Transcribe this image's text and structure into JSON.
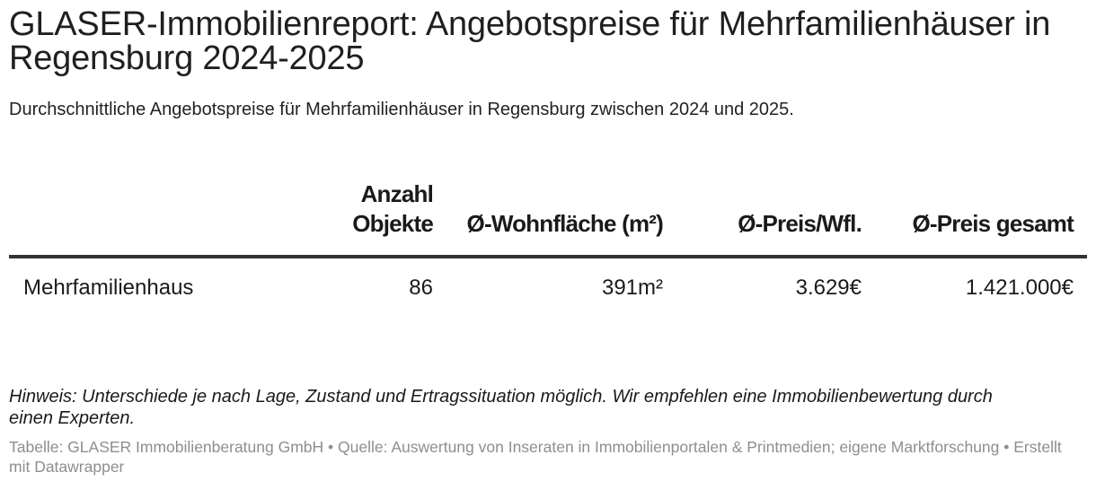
{
  "header": {
    "title": "GLASER-Immobilienreport: Angebotspreise für Mehrfamilienhäuser in Regensburg 2024-2025",
    "subtitle": "Durchschnittliche Angebotspreise für Mehrfamilienhäuser in Regensburg zwischen 2024 und 2025."
  },
  "chart_data": {
    "type": "table",
    "title": "GLASER-Immobilienreport: Angebotspreise für Mehrfamilienhäuser in Regensburg 2024-2025",
    "subtitle": "Durchschnittliche Angebotspreise für Mehrfamilienhäuser in Regensburg zwischen 2024 und 2025.",
    "columns": [
      "",
      "Anzahl Objekte",
      "Ø-Wohnfläche (m²)",
      "Ø-Preis/Wfl.",
      "Ø-Preis gesamt"
    ],
    "rows": [
      [
        "Mehrfamilienhaus",
        "86",
        "391m²",
        "3.629€",
        "1.421.000€"
      ]
    ]
  },
  "footer": {
    "note": "Hinweis: Unterschiede je nach Lage, Zustand und Ertragssituation möglich. Wir empfehlen eine Immobilienbewertung durch einen Experten.",
    "source": "Tabelle: GLASER Immobilienberatung GmbH • Quelle: Auswertung von Inseraten in Immobilienportalen & Printmedien; eigene Marktforschung • Erstellt mit Datawrapper"
  }
}
